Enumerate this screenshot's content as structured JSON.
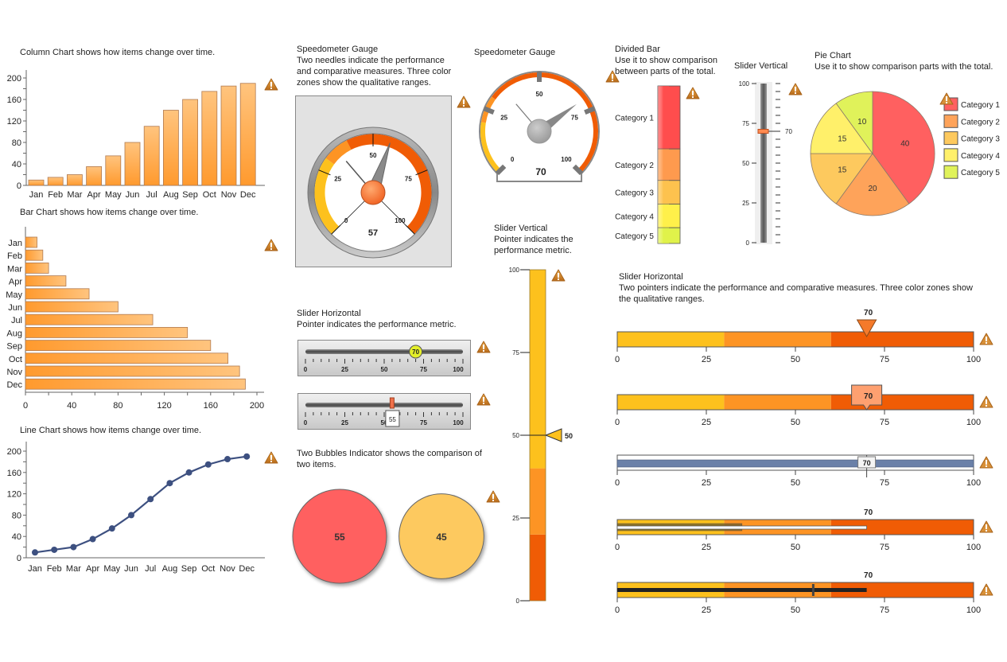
{
  "colors": {
    "orange_light": "#ffc47e",
    "orange_dark": "#ff9a2e",
    "navy": "#3d5080",
    "zone_low": "#fdc11d",
    "zone_mid": "#fd9424",
    "zone_high": "#f05c05",
    "warning": "#c8822a"
  },
  "column_chart": {
    "caption": "Column Chart shows how items change over time."
  },
  "bar_chart": {
    "caption": "Bar Chart shows how items change over time."
  },
  "line_chart": {
    "caption": "Line Chart shows how items change over time."
  },
  "speedometer1": {
    "title": "Speedometer Gauge",
    "description": "Two needles indicate the performance and comparative measures. Three color zones show the qualitative ranges.",
    "value": 57,
    "comparative": 35,
    "ticks": [
      "0",
      "25",
      "50",
      "75",
      "100"
    ],
    "value_label": "57"
  },
  "speedometer2": {
    "title": "Speedometer Gauge",
    "value": 70,
    "comparative": 35,
    "ticks": [
      "0",
      "25",
      "50",
      "75",
      "100"
    ],
    "value_label": "70"
  },
  "divided_bar": {
    "title": "Divided Bar",
    "description": "Use it to show comparison between parts of the total."
  },
  "slider_vertical_small": {
    "title": "Slider Vertical",
    "value": 70,
    "value_label": "70",
    "ticks": [
      "0",
      "25",
      "50",
      "75",
      "100"
    ]
  },
  "pie_chart": {
    "title": "Pie Chart",
    "description": "Use it to show comparison parts with the total."
  },
  "slider_horizontal_left": {
    "title": "Slider Horizontal",
    "description": "Pointer indicates the performance metric.",
    "slider1": {
      "value": 70,
      "value_label": "70"
    },
    "slider2": {
      "value": 55,
      "value_label": "55"
    },
    "ticks": [
      "0",
      "25",
      "50",
      "75",
      "100"
    ]
  },
  "bubbles": {
    "caption": "Two Bubbles Indicator shows the comparison of two items.",
    "items": [
      {
        "value": 55,
        "label": "55",
        "color": "#ff6060"
      },
      {
        "value": 45,
        "label": "45",
        "color": "#fdc95e"
      }
    ]
  },
  "slider_vertical_tall": {
    "title": "Slider Vertical",
    "description": "Pointer indicates the performance metric.",
    "value": 50,
    "value_label": "50",
    "ticks": [
      "0",
      "25",
      "50",
      "75",
      "100"
    ],
    "zones": [
      20,
      40,
      100
    ]
  },
  "slider_horizontal_right": {
    "title": "Slider Horizontal",
    "description": "Two pointers indicate the performance and comparative measures. Three color zones show the qualitative ranges.",
    "ticks": [
      "0",
      "25",
      "50",
      "75",
      "100"
    ],
    "zones": [
      30,
      60,
      100
    ],
    "rows": [
      {
        "value": 70,
        "label": "70",
        "style": "triangle"
      },
      {
        "value": 70,
        "label": "70",
        "style": "callout"
      },
      {
        "value": 70,
        "label": "70",
        "style": "progress"
      },
      {
        "value": 70,
        "label": "70",
        "style": "dual-bar",
        "comparative": 35
      },
      {
        "value": 70,
        "label": "70",
        "style": "bullet",
        "comparative": 55
      }
    ]
  },
  "chart_data": [
    {
      "type": "bar",
      "title": "Column Chart shows how items change over time.",
      "categories": [
        "Jan",
        "Feb",
        "Mar",
        "Apr",
        "May",
        "Jun",
        "Jul",
        "Aug",
        "Sep",
        "Oct",
        "Nov",
        "Dec"
      ],
      "values": [
        10,
        15,
        20,
        35,
        55,
        80,
        110,
        140,
        160,
        175,
        185,
        190
      ],
      "yticks": [
        "0",
        "40",
        "80",
        "120",
        "160",
        "200"
      ],
      "ylim": [
        0,
        200
      ],
      "orientation": "vertical"
    },
    {
      "type": "bar",
      "title": "Bar Chart shows how items change over time.",
      "categories": [
        "Jan",
        "Feb",
        "Mar",
        "Apr",
        "May",
        "Jun",
        "Jul",
        "Aug",
        "Sep",
        "Oct",
        "Nov",
        "Dec"
      ],
      "values": [
        10,
        15,
        20,
        35,
        55,
        80,
        110,
        140,
        160,
        175,
        185,
        190
      ],
      "xticks": [
        "0",
        "40",
        "80",
        "120",
        "160",
        "200"
      ],
      "xlim": [
        0,
        200
      ],
      "orientation": "horizontal"
    },
    {
      "type": "line",
      "title": "Line Chart shows how items change over time.",
      "categories": [
        "Jan",
        "Feb",
        "Mar",
        "Apr",
        "May",
        "Jun",
        "Jul",
        "Aug",
        "Sep",
        "Oct",
        "Nov",
        "Dec"
      ],
      "values": [
        10,
        15,
        20,
        35,
        55,
        80,
        110,
        140,
        160,
        175,
        185,
        190
      ],
      "yticks": [
        "0",
        "40",
        "80",
        "120",
        "160",
        "200"
      ],
      "ylim": [
        0,
        200
      ]
    },
    {
      "type": "pie",
      "title": "Pie Chart",
      "legend": "right",
      "slices": [
        {
          "label": "Category 1",
          "value": 40,
          "color": "#ff6060"
        },
        {
          "label": "Category 2",
          "value": 20,
          "color": "#fea35a"
        },
        {
          "label": "Category 3",
          "value": 15,
          "color": "#fdc95e"
        },
        {
          "label": "Category 4",
          "value": 15,
          "color": "#fff06a"
        },
        {
          "label": "Category 5",
          "value": 10,
          "color": "#e0f25a"
        }
      ]
    },
    {
      "type": "bar",
      "title": "Divided Bar",
      "stacked": true,
      "segments": [
        {
          "label": "Category 1",
          "value": 40,
          "color": "#ff4d4d"
        },
        {
          "label": "Category 2",
          "value": 20,
          "color": "#fe9a4e"
        },
        {
          "label": "Category 3",
          "value": 15,
          "color": "#fdc24e"
        },
        {
          "label": "Category 4",
          "value": 15,
          "color": "#fff04a"
        },
        {
          "label": "Category 5",
          "value": 10,
          "color": "#e0f24a"
        }
      ]
    }
  ]
}
